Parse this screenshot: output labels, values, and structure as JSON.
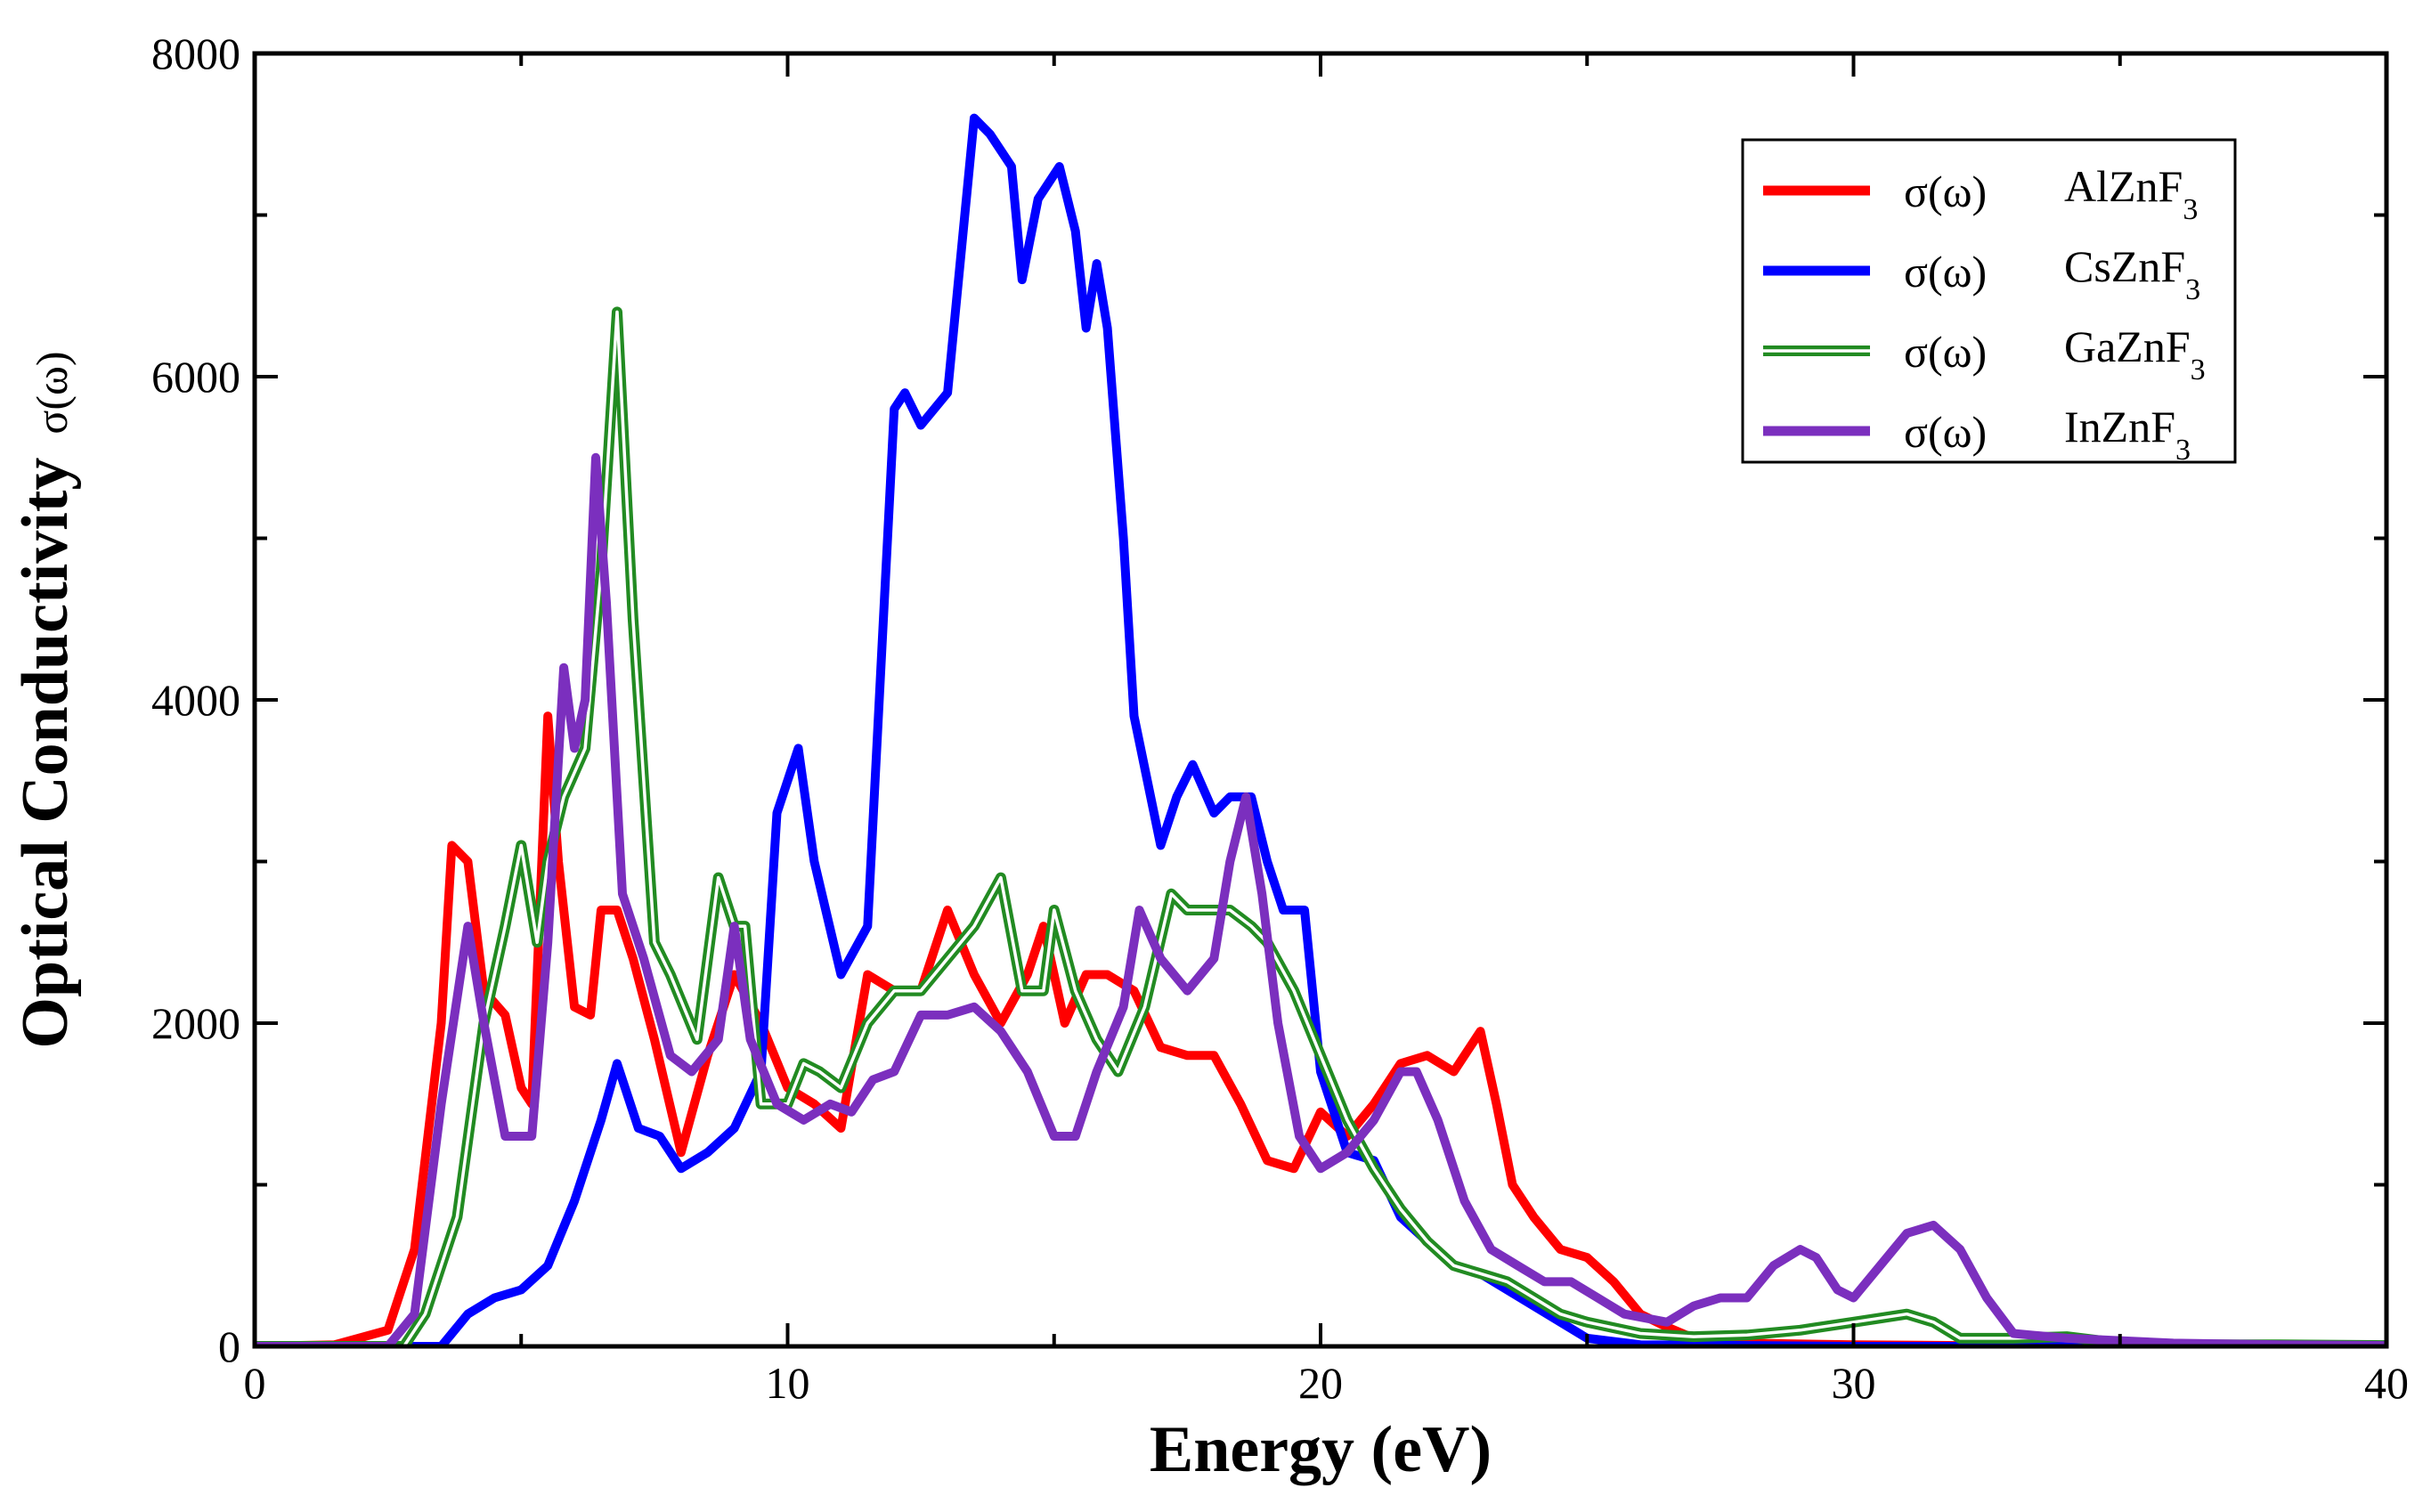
{
  "chart_data": {
    "type": "line",
    "title": "",
    "xlabel": "Energy (eV)",
    "ylabel": "Optical Conductivity",
    "ylabel_symbol": "σ(ω)",
    "xlim": [
      0,
      40
    ],
    "ylim": [
      0,
      8000
    ],
    "x_ticks": [
      0,
      10,
      20,
      30,
      40
    ],
    "x_tick_labels": [
      "0",
      "10",
      "20",
      "30",
      "40"
    ],
    "y_ticks": [
      0,
      2000,
      4000,
      6000,
      8000
    ],
    "y_tick_labels": [
      "0",
      "2000",
      "4000",
      "6000",
      "8000"
    ],
    "legend_position": "top-right",
    "grid": false,
    "series": [
      {
        "name": "AlZnF3",
        "legend_prefix": "σ(ω)",
        "legend_label": "AlZnF",
        "legend_sub": "3",
        "color": "#ff0000",
        "style": "solid",
        "points": [
          [
            0,
            0
          ],
          [
            1.5,
            10
          ],
          [
            2.5,
            100
          ],
          [
            3,
            600
          ],
          [
            3.5,
            2000
          ],
          [
            3.7,
            3100
          ],
          [
            4,
            3000
          ],
          [
            4.3,
            2200
          ],
          [
            4.7,
            2050
          ],
          [
            5,
            1600
          ],
          [
            5.2,
            1500
          ],
          [
            5.5,
            3900
          ],
          [
            5.7,
            3000
          ],
          [
            6,
            2100
          ],
          [
            6.3,
            2050
          ],
          [
            6.5,
            2700
          ],
          [
            6.8,
            2700
          ],
          [
            7.1,
            2400
          ],
          [
            7.5,
            1900
          ],
          [
            8,
            1200
          ],
          [
            8.5,
            1800
          ],
          [
            9,
            2300
          ],
          [
            9.5,
            2000
          ],
          [
            10,
            1600
          ],
          [
            10.5,
            1500
          ],
          [
            11,
            1350
          ],
          [
            11.5,
            2300
          ],
          [
            12,
            2200
          ],
          [
            12.5,
            2200
          ],
          [
            13,
            2700
          ],
          [
            13.5,
            2300
          ],
          [
            14,
            2000
          ],
          [
            14.5,
            2300
          ],
          [
            14.8,
            2600
          ],
          [
            15.2,
            2000
          ],
          [
            15.6,
            2300
          ],
          [
            16,
            2300
          ],
          [
            16.5,
            2200
          ],
          [
            17,
            1850
          ],
          [
            17.5,
            1800
          ],
          [
            18,
            1800
          ],
          [
            18.5,
            1500
          ],
          [
            19,
            1150
          ],
          [
            19.5,
            1100
          ],
          [
            20,
            1450
          ],
          [
            20.5,
            1300
          ],
          [
            21,
            1500
          ],
          [
            21.5,
            1750
          ],
          [
            22,
            1800
          ],
          [
            22.5,
            1700
          ],
          [
            23,
            1950
          ],
          [
            23.3,
            1500
          ],
          [
            23.6,
            1000
          ],
          [
            24,
            800
          ],
          [
            24.5,
            600
          ],
          [
            25,
            550
          ],
          [
            25.5,
            400
          ],
          [
            26,
            200
          ],
          [
            26.5,
            120
          ],
          [
            27,
            50
          ],
          [
            28,
            20
          ],
          [
            30,
            10
          ],
          [
            32,
            5
          ],
          [
            34,
            20
          ],
          [
            35,
            5
          ],
          [
            40,
            5
          ]
        ]
      },
      {
        "name": "CsZnF3",
        "legend_prefix": "σ(ω)",
        "legend_label": "CsZnF",
        "legend_sub": "3",
        "color": "#0000ff",
        "style": "solid",
        "points": [
          [
            0,
            0
          ],
          [
            3.5,
            0
          ],
          [
            4,
            200
          ],
          [
            4.5,
            300
          ],
          [
            5,
            350
          ],
          [
            5.5,
            500
          ],
          [
            6,
            900
          ],
          [
            6.5,
            1400
          ],
          [
            6.8,
            1750
          ],
          [
            7.2,
            1350
          ],
          [
            7.6,
            1300
          ],
          [
            8,
            1100
          ],
          [
            8.5,
            1200
          ],
          [
            9,
            1350
          ],
          [
            9.5,
            1700
          ],
          [
            9.8,
            3300
          ],
          [
            10.2,
            3700
          ],
          [
            10.5,
            3000
          ],
          [
            11,
            2300
          ],
          [
            11.5,
            2600
          ],
          [
            12,
            5800
          ],
          [
            12.2,
            5900
          ],
          [
            12.5,
            5700
          ],
          [
            13,
            5900
          ],
          [
            13.5,
            7600
          ],
          [
            13.8,
            7500
          ],
          [
            14.2,
            7300
          ],
          [
            14.4,
            6600
          ],
          [
            14.7,
            7100
          ],
          [
            15.1,
            7300
          ],
          [
            15.4,
            6900
          ],
          [
            15.6,
            6300
          ],
          [
            15.8,
            6700
          ],
          [
            16,
            6300
          ],
          [
            16.3,
            5000
          ],
          [
            16.5,
            3900
          ],
          [
            17,
            3100
          ],
          [
            17.3,
            3400
          ],
          [
            17.6,
            3600
          ],
          [
            18,
            3300
          ],
          [
            18.3,
            3400
          ],
          [
            18.7,
            3400
          ],
          [
            19,
            3000
          ],
          [
            19.3,
            2700
          ],
          [
            19.7,
            2700
          ],
          [
            20,
            1700
          ],
          [
            20.5,
            1200
          ],
          [
            21,
            1150
          ],
          [
            21.5,
            800
          ],
          [
            22,
            650
          ],
          [
            22.5,
            500
          ],
          [
            23,
            450
          ],
          [
            23.5,
            350
          ],
          [
            24,
            250
          ],
          [
            25,
            50
          ],
          [
            26,
            10
          ],
          [
            30,
            0
          ],
          [
            40,
            0
          ]
        ]
      },
      {
        "name": "GaZnF3",
        "legend_prefix": "σ(ω)",
        "legend_label": "GaZnF",
        "legend_sub": "3",
        "color": "#228b22",
        "style": "double",
        "points": [
          [
            0,
            0
          ],
          [
            2.8,
            0
          ],
          [
            3.2,
            200
          ],
          [
            3.8,
            800
          ],
          [
            4.3,
            2000
          ],
          [
            4.7,
            2600
          ],
          [
            5,
            3100
          ],
          [
            5.3,
            2500
          ],
          [
            5.5,
            3000
          ],
          [
            5.8,
            3400
          ],
          [
            6.2,
            3700
          ],
          [
            6.5,
            4800
          ],
          [
            6.8,
            6400
          ],
          [
            7.1,
            4500
          ],
          [
            7.5,
            2500
          ],
          [
            7.8,
            2300
          ],
          [
            8.3,
            1900
          ],
          [
            8.7,
            2900
          ],
          [
            9,
            2600
          ],
          [
            9.2,
            2600
          ],
          [
            9.5,
            1500
          ],
          [
            10,
            1500
          ],
          [
            10.3,
            1750
          ],
          [
            10.6,
            1700
          ],
          [
            11,
            1600
          ],
          [
            11.5,
            2000
          ],
          [
            12,
            2200
          ],
          [
            12.5,
            2200
          ],
          [
            13,
            2400
          ],
          [
            13.5,
            2600
          ],
          [
            14,
            2900
          ],
          [
            14.4,
            2200
          ],
          [
            14.8,
            2200
          ],
          [
            15,
            2700
          ],
          [
            15.4,
            2200
          ],
          [
            15.8,
            1900
          ],
          [
            16.2,
            1700
          ],
          [
            16.7,
            2100
          ],
          [
            17.2,
            2800
          ],
          [
            17.5,
            2700
          ],
          [
            17.9,
            2700
          ],
          [
            18.3,
            2700
          ],
          [
            18.7,
            2600
          ],
          [
            19,
            2500
          ],
          [
            19.5,
            2200
          ],
          [
            20,
            1800
          ],
          [
            20.5,
            1400
          ],
          [
            21,
            1100
          ],
          [
            21.5,
            850
          ],
          [
            22,
            650
          ],
          [
            22.5,
            500
          ],
          [
            23,
            450
          ],
          [
            23.5,
            400
          ],
          [
            24,
            300
          ],
          [
            24.5,
            200
          ],
          [
            25,
            150
          ],
          [
            26,
            80
          ],
          [
            27,
            60
          ],
          [
            28,
            70
          ],
          [
            29,
            100
          ],
          [
            30,
            150
          ],
          [
            31,
            200
          ],
          [
            31.5,
            150
          ],
          [
            32,
            50
          ],
          [
            33,
            50
          ],
          [
            34,
            60
          ],
          [
            35,
            20
          ],
          [
            36,
            10
          ],
          [
            38,
            10
          ],
          [
            40,
            5
          ]
        ]
      },
      {
        "name": "InZnF3",
        "legend_prefix": "σ(ω)",
        "legend_label": "InZnF",
        "legend_sub": "3",
        "color": "#7b2fbe",
        "style": "solid",
        "points": [
          [
            0,
            0
          ],
          [
            2.5,
            0
          ],
          [
            3,
            200
          ],
          [
            3.5,
            1500
          ],
          [
            4,
            2600
          ],
          [
            4.3,
            2000
          ],
          [
            4.7,
            1300
          ],
          [
            5.2,
            1300
          ],
          [
            5.5,
            2500
          ],
          [
            5.8,
            4200
          ],
          [
            6,
            3700
          ],
          [
            6.2,
            4000
          ],
          [
            6.4,
            5500
          ],
          [
            6.6,
            4600
          ],
          [
            6.9,
            2800
          ],
          [
            7.3,
            2400
          ],
          [
            7.8,
            1800
          ],
          [
            8.2,
            1700
          ],
          [
            8.7,
            1900
          ],
          [
            9,
            2600
          ],
          [
            9.3,
            1900
          ],
          [
            9.8,
            1500
          ],
          [
            10.3,
            1400
          ],
          [
            10.8,
            1500
          ],
          [
            11.2,
            1450
          ],
          [
            11.6,
            1650
          ],
          [
            12,
            1700
          ],
          [
            12.5,
            2050
          ],
          [
            13,
            2050
          ],
          [
            13.5,
            2100
          ],
          [
            14,
            1950
          ],
          [
            14.5,
            1700
          ],
          [
            15,
            1300
          ],
          [
            15.4,
            1300
          ],
          [
            15.8,
            1700
          ],
          [
            16.3,
            2100
          ],
          [
            16.6,
            2700
          ],
          [
            17,
            2400
          ],
          [
            17.5,
            2200
          ],
          [
            18,
            2400
          ],
          [
            18.3,
            3000
          ],
          [
            18.6,
            3400
          ],
          [
            18.9,
            2800
          ],
          [
            19.2,
            2000
          ],
          [
            19.6,
            1300
          ],
          [
            20,
            1100
          ],
          [
            20.5,
            1200
          ],
          [
            21,
            1400
          ],
          [
            21.5,
            1700
          ],
          [
            21.8,
            1700
          ],
          [
            22.2,
            1400
          ],
          [
            22.7,
            900
          ],
          [
            23.2,
            600
          ],
          [
            23.7,
            500
          ],
          [
            24.2,
            400
          ],
          [
            24.7,
            400
          ],
          [
            25.2,
            300
          ],
          [
            25.7,
            200
          ],
          [
            26.5,
            150
          ],
          [
            27,
            250
          ],
          [
            27.5,
            300
          ],
          [
            28,
            300
          ],
          [
            28.5,
            500
          ],
          [
            29,
            600
          ],
          [
            29.3,
            550
          ],
          [
            29.7,
            350
          ],
          [
            30,
            300
          ],
          [
            30.5,
            500
          ],
          [
            31,
            700
          ],
          [
            31.5,
            750
          ],
          [
            32,
            600
          ],
          [
            32.5,
            300
          ],
          [
            33,
            80
          ],
          [
            34,
            50
          ],
          [
            36,
            20
          ],
          [
            38,
            10
          ],
          [
            40,
            5
          ]
        ]
      }
    ]
  }
}
